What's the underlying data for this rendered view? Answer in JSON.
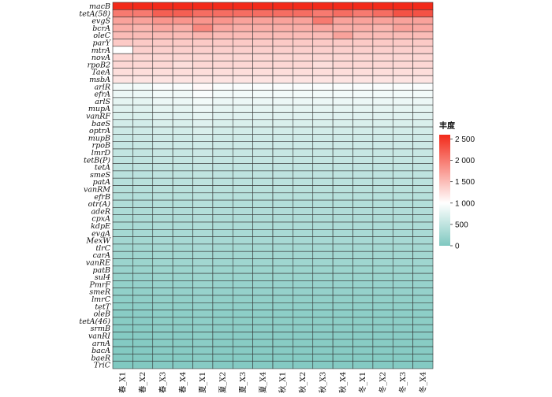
{
  "chart_data": {
    "type": "heatmap",
    "title": "",
    "columns": [
      "春_X1",
      "春_X2",
      "春_X3",
      "春_X4",
      "夏_X1",
      "夏_X2",
      "夏_X3",
      "夏_X4",
      "秋_X1",
      "秋_X2",
      "秋_X3",
      "秋_X4",
      "冬_X1",
      "冬_X2",
      "冬_X3",
      "冬_X4"
    ],
    "rows": [
      "macB",
      "tetA(58)",
      "evgS",
      "bcrA",
      "oleC",
      "parY",
      "mtrA",
      "novA",
      "rpoB2",
      "TaeA",
      "msbA",
      "arlR",
      "efrA",
      "arlS",
      "mupA",
      "vanRF",
      "baeS",
      "optrA",
      "mupB",
      "rpoB",
      "lmrD",
      "tetB(P)",
      "tetA",
      "smeS",
      "patA",
      "vanRM",
      "efrB",
      "otr(A)",
      "adeR",
      "cpxA",
      "kdpE",
      "evgA",
      "MexW",
      "tlrC",
      "carA",
      "vanRE",
      "patB",
      "sul4",
      "PmrF",
      "smeR",
      "lmrC",
      "tetT",
      "oleB",
      "tetA(46)",
      "srmB",
      "vanRI",
      "arnA",
      "bacA",
      "baeR",
      "TriC"
    ],
    "values": [
      [
        2600,
        2600,
        2600,
        2600,
        2600,
        2600,
        2600,
        2600,
        2600,
        2600,
        2600,
        2600,
        2600,
        2600,
        2600,
        2600
      ],
      [
        2000,
        2000,
        2200,
        2200,
        2100,
        2100,
        2100,
        2100,
        2100,
        2100,
        2000,
        2100,
        2000,
        2100,
        2300,
        2300
      ],
      [
        1700,
        1700,
        1800,
        1800,
        1800,
        1800,
        1700,
        1700,
        1700,
        1700,
        2000,
        1700,
        1700,
        1700,
        1700,
        1700
      ],
      [
        1600,
        1550,
        1650,
        1600,
        1900,
        1650,
        1600,
        1600,
        1600,
        1600,
        1650,
        1600,
        1600,
        1550,
        1700,
        1650
      ],
      [
        1500,
        1500,
        1500,
        1500,
        1550,
        1500,
        1500,
        1500,
        1500,
        1500,
        1500,
        1700,
        1500,
        1500,
        1500,
        1500
      ],
      [
        1400,
        1400,
        1400,
        1400,
        1400,
        1400,
        1400,
        1400,
        1400,
        1400,
        1400,
        1400,
        1400,
        1400,
        1400,
        1400
      ],
      [
        1000,
        1350,
        1350,
        1350,
        1350,
        1350,
        1350,
        1350,
        1350,
        1350,
        1350,
        1350,
        1350,
        1350,
        1350,
        1350
      ],
      [
        1300,
        1300,
        1300,
        1300,
        1300,
        1300,
        1300,
        1300,
        1300,
        1300,
        1300,
        1300,
        1300,
        1300,
        1300,
        1300
      ],
      [
        1300,
        1300,
        1300,
        1250,
        1300,
        1300,
        1300,
        1300,
        1300,
        1300,
        1250,
        1300,
        1300,
        1300,
        1300,
        1300
      ],
      [
        1250,
        1250,
        1250,
        1250,
        1250,
        1250,
        1250,
        1250,
        1250,
        1250,
        1250,
        1250,
        1250,
        1250,
        1250,
        1250
      ],
      [
        1200,
        1200,
        1200,
        1200,
        1200,
        1200,
        1200,
        1200,
        1200,
        1200,
        1200,
        1200,
        1200,
        1200,
        1200,
        1200
      ],
      [
        900,
        900,
        950,
        950,
        1050,
        950,
        950,
        950,
        950,
        950,
        950,
        950,
        950,
        950,
        950,
        950
      ],
      [
        850,
        850,
        900,
        880,
        950,
        900,
        900,
        900,
        900,
        900,
        900,
        900,
        900,
        900,
        900,
        900
      ],
      [
        800,
        800,
        850,
        850,
        900,
        850,
        850,
        850,
        850,
        850,
        850,
        850,
        850,
        850,
        850,
        850
      ],
      [
        750,
        750,
        800,
        800,
        850,
        800,
        800,
        800,
        800,
        800,
        800,
        800,
        800,
        800,
        800,
        800
      ],
      [
        700,
        700,
        750,
        750,
        800,
        750,
        750,
        750,
        750,
        750,
        750,
        750,
        750,
        750,
        750,
        750
      ],
      [
        650,
        650,
        700,
        700,
        750,
        700,
        700,
        700,
        700,
        700,
        700,
        700,
        700,
        700,
        700,
        700
      ],
      [
        600,
        620,
        650,
        650,
        700,
        650,
        650,
        650,
        650,
        650,
        650,
        650,
        650,
        650,
        650,
        650
      ],
      [
        580,
        590,
        620,
        620,
        650,
        620,
        620,
        620,
        620,
        620,
        620,
        620,
        620,
        620,
        620,
        620
      ],
      [
        550,
        560,
        600,
        600,
        620,
        600,
        600,
        600,
        600,
        600,
        600,
        600,
        600,
        600,
        600,
        600
      ],
      [
        520,
        530,
        560,
        560,
        590,
        560,
        560,
        560,
        560,
        560,
        560,
        560,
        560,
        560,
        560,
        560
      ],
      [
        500,
        510,
        540,
        540,
        560,
        540,
        540,
        540,
        540,
        540,
        540,
        540,
        540,
        540,
        540,
        540
      ],
      [
        480,
        490,
        510,
        510,
        530,
        510,
        510,
        510,
        510,
        510,
        510,
        510,
        510,
        510,
        510,
        510
      ],
      [
        460,
        470,
        490,
        490,
        510,
        490,
        490,
        490,
        490,
        490,
        490,
        490,
        490,
        490,
        490,
        490
      ],
      [
        440,
        450,
        470,
        470,
        490,
        470,
        470,
        470,
        470,
        470,
        470,
        470,
        470,
        470,
        470,
        470
      ],
      [
        420,
        430,
        450,
        450,
        470,
        450,
        450,
        450,
        450,
        450,
        450,
        450,
        450,
        450,
        450,
        450
      ],
      [
        400,
        410,
        430,
        430,
        450,
        430,
        430,
        430,
        430,
        430,
        430,
        430,
        430,
        430,
        430,
        430
      ],
      [
        380,
        390,
        410,
        410,
        430,
        410,
        410,
        410,
        410,
        410,
        410,
        410,
        410,
        410,
        410,
        410
      ],
      [
        360,
        370,
        390,
        390,
        410,
        390,
        390,
        390,
        390,
        390,
        390,
        390,
        390,
        390,
        390,
        390
      ],
      [
        340,
        350,
        370,
        370,
        390,
        370,
        370,
        370,
        370,
        370,
        370,
        370,
        370,
        370,
        370,
        370
      ],
      [
        320,
        330,
        350,
        350,
        370,
        350,
        350,
        350,
        350,
        350,
        350,
        350,
        350,
        350,
        350,
        350
      ],
      [
        300,
        310,
        330,
        330,
        350,
        330,
        330,
        330,
        330,
        330,
        330,
        330,
        330,
        330,
        330,
        330
      ],
      [
        280,
        290,
        310,
        310,
        330,
        310,
        310,
        310,
        310,
        310,
        310,
        310,
        310,
        310,
        310,
        310
      ],
      [
        260,
        270,
        290,
        290,
        310,
        290,
        290,
        290,
        290,
        290,
        290,
        290,
        290,
        290,
        290,
        290
      ],
      [
        240,
        250,
        270,
        270,
        290,
        270,
        270,
        270,
        270,
        270,
        270,
        270,
        270,
        270,
        270,
        270
      ],
      [
        220,
        230,
        250,
        250,
        270,
        250,
        250,
        250,
        250,
        250,
        250,
        250,
        250,
        250,
        250,
        250
      ],
      [
        200,
        210,
        230,
        230,
        250,
        230,
        230,
        230,
        230,
        230,
        230,
        230,
        230,
        230,
        230,
        230
      ],
      [
        180,
        190,
        210,
        210,
        230,
        210,
        210,
        210,
        210,
        210,
        210,
        210,
        210,
        210,
        210,
        210
      ],
      [
        160,
        170,
        190,
        190,
        210,
        190,
        190,
        190,
        190,
        190,
        190,
        190,
        190,
        190,
        190,
        190
      ],
      [
        140,
        150,
        170,
        170,
        190,
        170,
        170,
        170,
        170,
        170,
        170,
        170,
        170,
        170,
        170,
        170
      ],
      [
        120,
        130,
        150,
        150,
        170,
        150,
        150,
        150,
        150,
        150,
        150,
        150,
        150,
        150,
        150,
        150
      ],
      [
        100,
        110,
        130,
        130,
        150,
        130,
        130,
        130,
        130,
        130,
        130,
        130,
        130,
        130,
        130,
        130
      ],
      [
        80,
        90,
        110,
        110,
        130,
        110,
        110,
        110,
        110,
        110,
        110,
        110,
        110,
        110,
        110,
        110
      ],
      [
        70,
        80,
        100,
        100,
        120,
        100,
        100,
        100,
        100,
        100,
        100,
        100,
        100,
        100,
        100,
        100
      ],
      [
        60,
        70,
        90,
        90,
        110,
        90,
        90,
        90,
        90,
        90,
        90,
        90,
        90,
        90,
        90,
        90
      ],
      [
        50,
        60,
        80,
        80,
        100,
        80,
        80,
        80,
        80,
        80,
        80,
        80,
        80,
        80,
        80,
        80
      ],
      [
        40,
        50,
        70,
        70,
        90,
        70,
        70,
        70,
        70,
        70,
        70,
        70,
        70,
        70,
        70,
        70
      ],
      [
        30,
        40,
        60,
        60,
        80,
        60,
        60,
        60,
        60,
        60,
        60,
        60,
        60,
        60,
        60,
        60
      ],
      [
        20,
        30,
        50,
        50,
        70,
        50,
        50,
        50,
        50,
        50,
        50,
        50,
        50,
        50,
        50,
        50
      ],
      [
        10,
        20,
        40,
        40,
        60,
        40,
        40,
        40,
        40,
        40,
        40,
        40,
        40,
        40,
        40,
        40
      ]
    ],
    "legend": {
      "title": "丰度",
      "ticks": [
        {
          "value": 2500,
          "label": "2 500"
        },
        {
          "value": 2000,
          "label": "2 000"
        },
        {
          "value": 1500,
          "label": "1 500"
        },
        {
          "value": 1000,
          "label": "1 000"
        },
        {
          "value": 500,
          "label": "500"
        },
        {
          "value": 0,
          "label": "0"
        }
      ],
      "range": [
        0,
        2600
      ],
      "placement": "right"
    },
    "colors": {
      "low": "#7fc8c0",
      "mid": "#ffffff",
      "high": "#f22a1a",
      "grid": "#333333"
    }
  }
}
